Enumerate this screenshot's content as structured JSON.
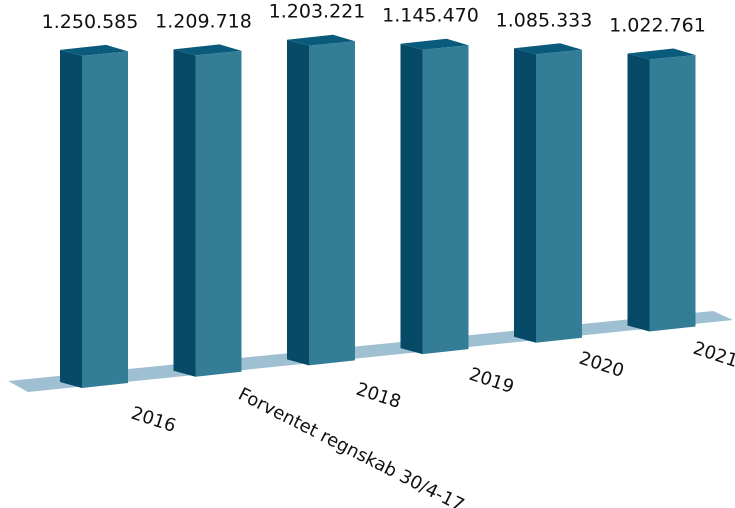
{
  "chart_data": {
    "type": "bar",
    "style": "3d-column",
    "categories": [
      "2016",
      "Forventet regnskab 30/4-17",
      "2018",
      "2019",
      "2020",
      "2021"
    ],
    "values": [
      1250585,
      1209718,
      1203221,
      1145470,
      1085333,
      1022761
    ],
    "value_labels": [
      "1.250.585",
      "1.209.718",
      "1.203.221",
      "1.145.470",
      "1.085.333",
      "1.022.761"
    ],
    "title": "",
    "xlabel": "",
    "ylabel": "",
    "grid": false,
    "legend": "none",
    "colors": {
      "front": "#347d97",
      "side": "#064a68",
      "top": "#0a5a7c",
      "floor": "#9fc0d3"
    }
  }
}
